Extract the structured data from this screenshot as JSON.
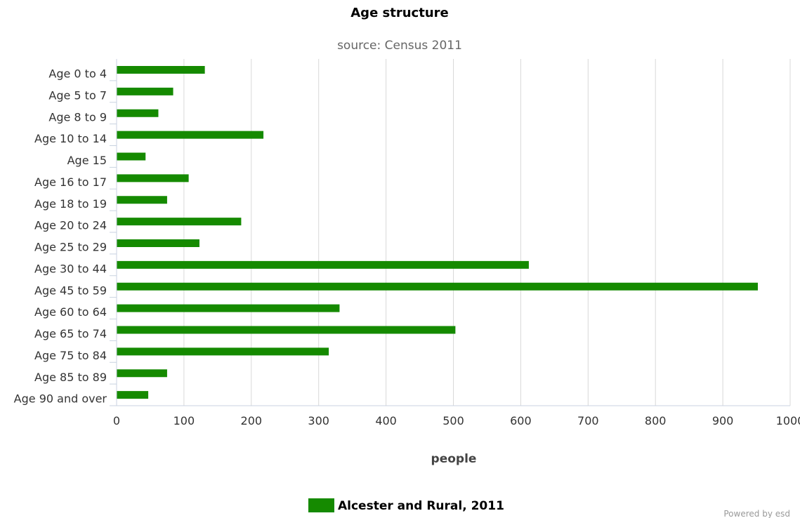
{
  "chart_data": {
    "type": "bar",
    "orientation": "horizontal",
    "title": "Age structure",
    "subtitle": "source: Census 2011",
    "categories": [
      "Age 0 to 4",
      "Age 5 to 7",
      "Age 8 to 9",
      "Age 10 to 14",
      "Age 15",
      "Age 16 to 17",
      "Age 18 to 19",
      "Age 20 to 24",
      "Age 25 to 29",
      "Age 30 to 44",
      "Age 45 to 59",
      "Age 60 to 64",
      "Age 65 to 74",
      "Age 75 to 84",
      "Age 85 to 89",
      "Age 90 and over"
    ],
    "series": [
      {
        "name": "Alcester and Rural, 2011",
        "values": [
          131,
          84,
          62,
          218,
          43,
          107,
          75,
          185,
          123,
          612,
          952,
          331,
          503,
          315,
          75,
          47
        ]
      }
    ],
    "xlabel": "people",
    "ylabel": "",
    "xlim": [
      0,
      1000
    ],
    "xticks": [
      0,
      100,
      200,
      300,
      400,
      500,
      600,
      700,
      800,
      900,
      1000
    ],
    "grid": true,
    "legend_position": "bottom-center",
    "bar_color": "#158a00",
    "grid_color": "#d8d8d8",
    "axis_color": "#c8d2e0"
  },
  "credit": "Powered by esd"
}
